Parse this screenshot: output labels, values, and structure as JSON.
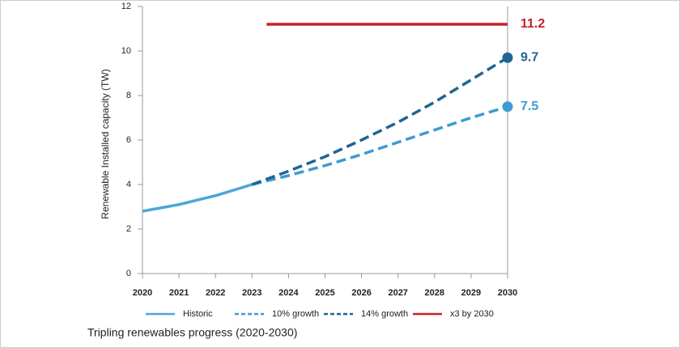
{
  "chart_data": {
    "type": "line",
    "title": "Tripling renewables progress (2020-2030)",
    "y_label": "Renewable Installed capacity (TW)",
    "xlim": [
      2020,
      2030
    ],
    "xticks": [
      2020,
      2021,
      2022,
      2023,
      2024,
      2025,
      2026,
      2027,
      2028,
      2029,
      2030
    ],
    "ylim": [
      0,
      12
    ],
    "yticks": [
      0,
      2,
      4,
      6,
      8,
      10,
      12
    ],
    "series": [
      {
        "name": "Historic",
        "color": "#4ea5d9",
        "style": "solid",
        "x": [
          2020,
          2021,
          2022,
          2023
        ],
        "values": [
          2.8,
          3.1,
          3.5,
          4.0
        ]
      },
      {
        "name": "10% growth",
        "color": "#3d9bd1",
        "style": "dashed",
        "end_marker": true,
        "end_label": true,
        "x": [
          2023,
          2024,
          2025,
          2026,
          2027,
          2028,
          2029,
          2030
        ],
        "values": [
          4.0,
          4.4,
          4.85,
          5.35,
          5.9,
          6.45,
          7.0,
          7.5
        ]
      },
      {
        "name": "14% growth",
        "color": "#1f6592",
        "style": "dashed",
        "end_marker": true,
        "end_label": true,
        "x": [
          2023,
          2024,
          2025,
          2026,
          2027,
          2028,
          2029,
          2030
        ],
        "values": [
          4.0,
          4.6,
          5.25,
          6.0,
          6.8,
          7.7,
          8.7,
          9.7
        ]
      },
      {
        "name": "x3 by 2030",
        "color": "#c8202a",
        "style": "solid",
        "end_label": true,
        "x": [
          2023.4,
          2030
        ],
        "values": [
          11.2,
          11.2
        ]
      }
    ]
  }
}
